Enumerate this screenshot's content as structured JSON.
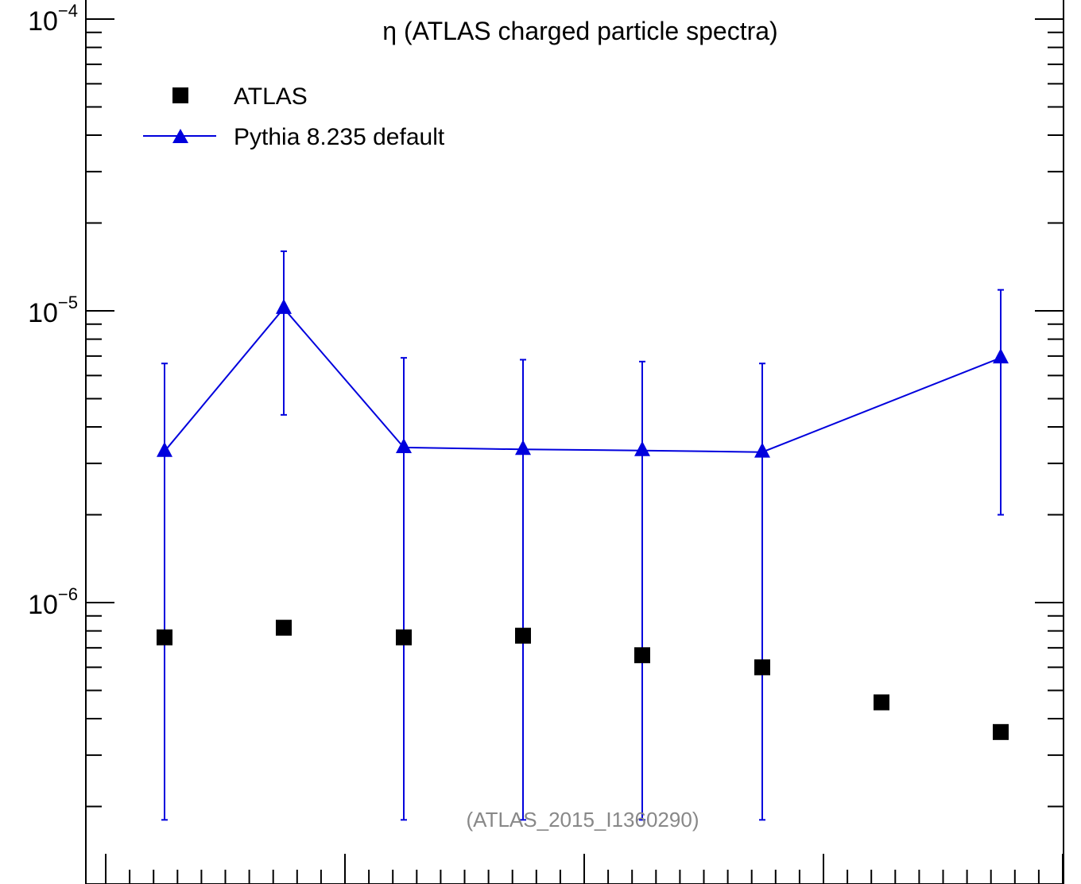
{
  "chart_data": {
    "type": "scatter",
    "title": "η (ATLAS charged particle spectra)",
    "watermark": "(ATLAS_2015_I1360290)",
    "xlabel": "",
    "ylabel": "",
    "y_scale": "log",
    "ylim": [
      1.8e-07,
      0.0001
    ],
    "x_ticks_labeled": false,
    "y_ticks": [
      {
        "base": "10",
        "exp": "−4",
        "value": 0.0001
      },
      {
        "base": "10",
        "exp": "−5",
        "value": 1e-05
      },
      {
        "base": "10",
        "exp": "−6",
        "value": 1e-06
      }
    ],
    "legend_position": "top-left",
    "grid": false,
    "series": [
      {
        "name": "ATLAS",
        "marker": "square",
        "color": "#000000",
        "line": false,
        "values": [
          7.6e-07,
          8.2e-07,
          7.6e-07,
          7.7e-07,
          6.6e-07,
          6e-07,
          4.55e-07,
          3.6e-07
        ]
      },
      {
        "name": "Pythia 8.235 default",
        "marker": "triangle",
        "color": "#0000dd",
        "line": true,
        "values": [
          3.3e-06,
          1.02e-05,
          3.4e-06,
          3.35e-06,
          3.32e-06,
          3.28e-06,
          null,
          6.9e-06
        ],
        "err_low": [
          1.8e-07,
          4.4e-06,
          1.8e-07,
          1.8e-07,
          1.8e-07,
          1.8e-07,
          null,
          2e-06
        ],
        "err_high": [
          6.6e-06,
          1.6e-05,
          6.9e-06,
          6.8e-06,
          6.7e-06,
          6.6e-06,
          null,
          1.18e-05
        ]
      }
    ]
  }
}
